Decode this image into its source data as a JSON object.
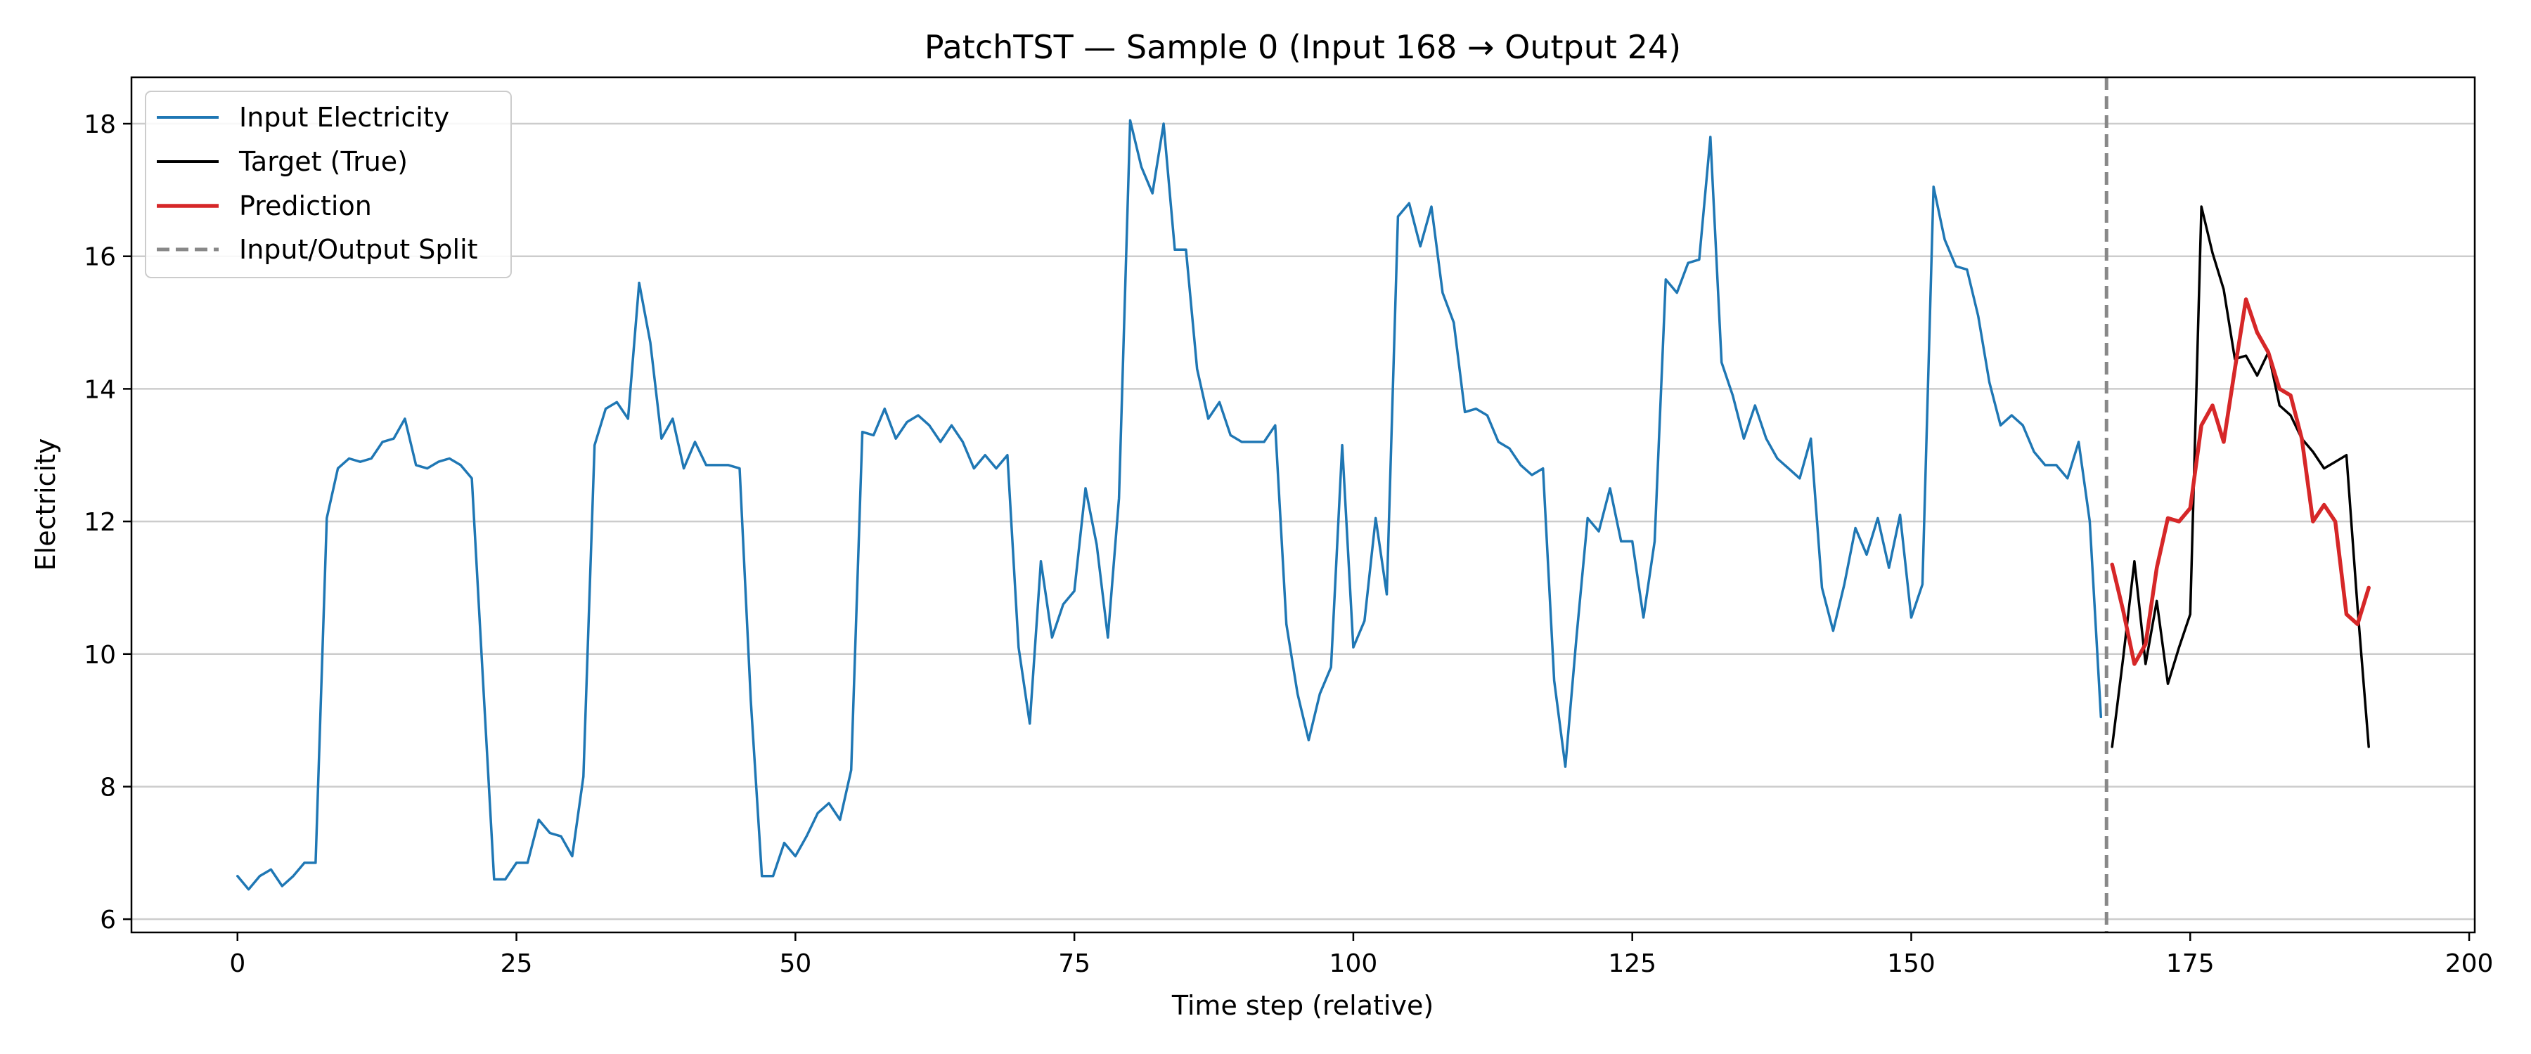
{
  "chart_data": {
    "type": "line",
    "title": "PatchTST — Sample 0 (Input 168 → Output 24)",
    "xlabel": "Time step (relative)",
    "ylabel": "Electricity",
    "xlim": [
      -9.5,
      200.5
    ],
    "ylim": [
      5.8,
      18.7
    ],
    "xticks": [
      0,
      25,
      50,
      75,
      100,
      125,
      150,
      175,
      200
    ],
    "yticks": [
      6,
      8,
      10,
      12,
      14,
      16,
      18
    ],
    "grid": "horizontal",
    "legend_position": "upper-left",
    "split_x": 167.5,
    "legend": [
      {
        "label": "Input Electricity",
        "color": "#1f77b4",
        "style": "solid"
      },
      {
        "label": "Target (True)",
        "color": "#000000",
        "style": "solid"
      },
      {
        "label": "Prediction",
        "color": "#d62728",
        "style": "solid"
      },
      {
        "label": "Input/Output Split",
        "color": "#888888",
        "style": "dashed"
      }
    ],
    "series": [
      {
        "name": "Input Electricity",
        "color": "#1f77b4",
        "x_start": 0,
        "values": [
          6.65,
          6.45,
          6.65,
          6.75,
          6.5,
          6.65,
          6.85,
          6.85,
          12.05,
          12.8,
          12.95,
          12.9,
          12.95,
          13.2,
          13.25,
          13.55,
          12.85,
          12.8,
          12.9,
          12.95,
          12.85,
          12.65,
          9.6,
          6.6,
          6.6,
          6.85,
          6.85,
          7.5,
          7.3,
          7.25,
          6.95,
          8.15,
          13.15,
          13.7,
          13.8,
          13.55,
          15.6,
          14.7,
          13.25,
          13.55,
          12.8,
          13.2,
          12.85,
          12.85,
          12.85,
          12.8,
          9.3,
          6.65,
          6.65,
          7.15,
          6.95,
          7.25,
          7.6,
          7.75,
          7.5,
          8.25,
          13.35,
          13.3,
          13.7,
          13.25,
          13.5,
          13.6,
          13.45,
          13.2,
          13.45,
          13.2,
          12.8,
          13.0,
          12.8,
          13.0,
          10.1,
          8.95,
          11.4,
          10.25,
          10.75,
          10.95,
          12.5,
          11.65,
          10.25,
          12.35,
          18.05,
          17.35,
          16.95,
          18.0,
          16.1,
          16.1,
          14.3,
          13.55,
          13.8,
          13.3,
          13.2,
          13.2,
          13.2,
          13.45,
          10.45,
          9.4,
          8.7,
          9.4,
          9.8,
          13.15,
          10.1,
          10.5,
          12.05,
          10.9,
          16.6,
          16.8,
          16.15,
          16.75,
          15.45,
          15.0,
          13.65,
          13.7,
          13.6,
          13.2,
          13.1,
          12.85,
          12.7,
          12.8,
          9.6,
          8.3,
          10.25,
          12.05,
          11.85,
          12.5,
          11.7,
          11.7,
          10.55,
          11.7,
          15.65,
          15.45,
          15.9,
          15.95,
          17.8,
          14.4,
          13.9,
          13.25,
          13.75,
          13.25,
          12.95,
          12.8,
          12.65,
          13.25,
          11.0,
          10.35,
          11.05,
          11.9,
          11.5,
          12.05,
          11.3,
          12.1,
          10.55,
          11.05,
          17.05,
          16.25,
          15.85,
          15.8,
          15.1,
          14.1,
          13.45,
          13.6,
          13.45,
          13.05,
          12.85,
          12.85,
          12.65,
          13.2,
          12.0,
          9.05
        ]
      },
      {
        "name": "Target (True)",
        "color": "#000000",
        "x_start": 168,
        "values": [
          8.6,
          9.95,
          11.4,
          9.85,
          10.8,
          9.55,
          10.1,
          10.6,
          16.75,
          16.05,
          15.5,
          14.45,
          14.5,
          14.2,
          14.55,
          13.75,
          13.6,
          13.25,
          13.05,
          12.8,
          12.9,
          13.0,
          10.7,
          8.6
        ]
      },
      {
        "name": "Prediction",
        "color": "#d62728",
        "x_start": 168,
        "values": [
          11.35,
          10.65,
          9.85,
          10.15,
          11.3,
          12.05,
          12.0,
          12.2,
          13.45,
          13.75,
          13.2,
          14.3,
          15.35,
          14.85,
          14.55,
          14.0,
          13.9,
          13.25,
          12.0,
          12.25,
          12.0,
          10.6,
          10.45,
          11.0
        ]
      }
    ]
  }
}
